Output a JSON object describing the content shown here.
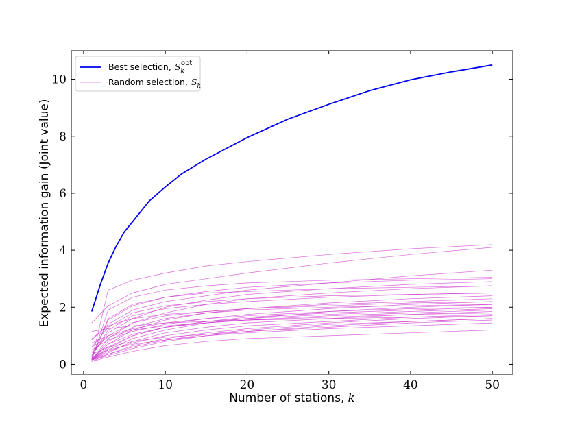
{
  "chart_data": {
    "type": "line",
    "xlabel": "Number of stations,",
    "xlabel_var": "k",
    "ylabel": "Expected information gain (Joint value)",
    "xlim": [
      -1.5,
      52.5
    ],
    "ylim": [
      -0.35,
      11.0
    ],
    "xticks": [
      "0",
      "10",
      "20",
      "30",
      "40",
      "50"
    ],
    "yticks": [
      "0",
      "2",
      "4",
      "6",
      "8",
      "10"
    ],
    "legend_position": "upper-left",
    "colors": {
      "best": "#0000ee",
      "random": "#cc33cc"
    },
    "best": {
      "label": "Best selection,",
      "label_math": "S",
      "label_sub": "k",
      "label_sup": "opt",
      "x": [
        1,
        2,
        3,
        4,
        5,
        6,
        8,
        10,
        12,
        15,
        20,
        25,
        30,
        35,
        40,
        45,
        50
      ],
      "y": [
        1.85,
        2.75,
        3.55,
        4.15,
        4.65,
        5.0,
        5.72,
        6.22,
        6.68,
        7.2,
        7.95,
        8.6,
        9.12,
        9.6,
        9.98,
        10.26,
        10.5
      ]
    },
    "random": {
      "label": "Random selection,",
      "label_math": "S",
      "label_sub": "k",
      "x": [
        1,
        3,
        6,
        10,
        15,
        20,
        30,
        40,
        50
      ],
      "series": [
        [
          0.15,
          2.6,
          2.95,
          3.2,
          3.45,
          3.6,
          3.85,
          4.05,
          4.2
        ],
        [
          1.45,
          2.05,
          2.5,
          2.8,
          3.0,
          3.2,
          3.55,
          3.85,
          4.1
        ],
        [
          0.2,
          1.55,
          2.05,
          2.35,
          2.55,
          2.7,
          2.85,
          2.95,
          3.0
        ],
        [
          0.85,
          1.4,
          1.9,
          2.2,
          2.4,
          2.6,
          2.85,
          3.1,
          3.3
        ],
        [
          0.3,
          1.1,
          1.6,
          2.0,
          2.25,
          2.45,
          2.65,
          2.8,
          2.9
        ],
        [
          0.15,
          0.9,
          1.45,
          1.8,
          2.1,
          2.3,
          2.5,
          2.65,
          2.75
        ],
        [
          0.6,
          1.3,
          1.8,
          2.05,
          2.2,
          2.3,
          2.4,
          2.45,
          2.5
        ],
        [
          0.15,
          0.7,
          1.2,
          1.55,
          1.8,
          1.95,
          2.15,
          2.3,
          2.4
        ],
        [
          0.4,
          1.0,
          1.45,
          1.7,
          1.85,
          1.95,
          2.1,
          2.2,
          2.3
        ],
        [
          0.15,
          0.5,
          0.9,
          1.2,
          1.45,
          1.6,
          1.85,
          2.0,
          2.1
        ],
        [
          0.15,
          0.55,
          1.0,
          1.3,
          1.5,
          1.6,
          1.75,
          1.85,
          1.95
        ],
        [
          0.2,
          0.7,
          1.05,
          1.3,
          1.45,
          1.55,
          1.7,
          1.8,
          1.9
        ],
        [
          0.15,
          0.4,
          0.8,
          1.1,
          1.3,
          1.45,
          1.6,
          1.75,
          1.85
        ],
        [
          0.6,
          0.95,
          1.2,
          1.35,
          1.45,
          1.55,
          1.65,
          1.75,
          1.8
        ],
        [
          0.15,
          0.45,
          0.75,
          1.0,
          1.2,
          1.35,
          1.5,
          1.65,
          1.75
        ],
        [
          0.1,
          0.35,
          0.65,
          0.9,
          1.1,
          1.25,
          1.45,
          1.6,
          1.7
        ],
        [
          1.15,
          1.25,
          1.35,
          1.45,
          1.5,
          1.55,
          1.6,
          1.65,
          1.7
        ],
        [
          0.15,
          0.3,
          0.55,
          0.8,
          1.0,
          1.15,
          1.35,
          1.5,
          1.6
        ],
        [
          0.35,
          0.6,
          0.8,
          0.95,
          1.05,
          1.15,
          1.3,
          1.45,
          1.55
        ],
        [
          0.1,
          0.25,
          0.45,
          0.65,
          0.8,
          0.9,
          1.0,
          1.1,
          1.2
        ],
        [
          0.3,
          1.2,
          1.7,
          1.95,
          2.1,
          2.2,
          2.35,
          2.45,
          2.5
        ],
        [
          0.15,
          0.8,
          1.3,
          1.6,
          1.8,
          1.9,
          2.0,
          2.05,
          2.1
        ],
        [
          0.9,
          1.35,
          1.6,
          1.75,
          1.85,
          1.95,
          2.05,
          2.15,
          2.2
        ],
        [
          0.15,
          0.6,
          1.0,
          1.3,
          1.5,
          1.65,
          1.8,
          1.9,
          2.0
        ],
        [
          0.25,
          0.5,
          0.7,
          0.85,
          1.0,
          1.1,
          1.25,
          1.35,
          1.45
        ],
        [
          0.15,
          1.9,
          2.35,
          2.6,
          2.75,
          2.85,
          2.95,
          3.0,
          3.05
        ],
        [
          0.5,
          0.85,
          1.15,
          1.4,
          1.6,
          1.75,
          1.95,
          2.1,
          2.2
        ],
        [
          0.15,
          0.35,
          0.6,
          0.85,
          1.05,
          1.2,
          1.4,
          1.5,
          1.6
        ],
        [
          0.75,
          1.0,
          1.25,
          1.45,
          1.6,
          1.7,
          1.85,
          1.95,
          2.0
        ],
        [
          0.2,
          1.6,
          2.1,
          2.35,
          2.5,
          2.55,
          2.65,
          2.7,
          2.75
        ]
      ]
    }
  }
}
